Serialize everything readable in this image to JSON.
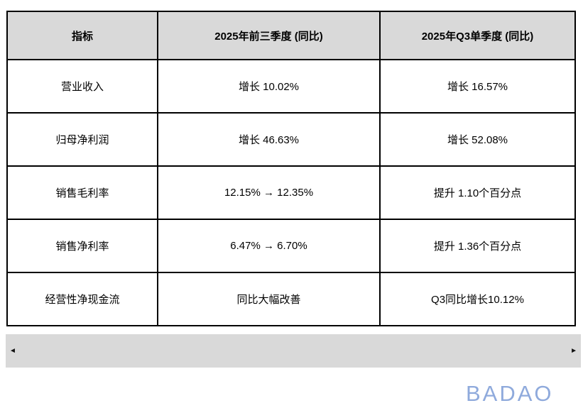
{
  "table": {
    "columns": [
      {
        "label": "指标"
      },
      {
        "label": "2025年前三季度 (同比)"
      },
      {
        "label": "2025年Q3单季度 (同比)"
      }
    ],
    "rows": [
      {
        "metric": "营业收入",
        "ytd": "增长 10.02%",
        "q3": "增长 16.57%"
      },
      {
        "metric": "归母净利润",
        "ytd": "增长 46.63%",
        "q3": "增长 52.08%"
      },
      {
        "metric": "销售毛利率",
        "ytd": "12.15% → 12.35%",
        "q3": "提升 1.10个百分点"
      },
      {
        "metric": "销售净利率",
        "ytd": "6.47% → 6.70%",
        "q3": "提升 1.36个百分点"
      },
      {
        "metric": "经营性净现金流",
        "ytd": "同比大幅改善",
        "q3": "Q3同比增长10.12%"
      }
    ]
  },
  "chart_data": {
    "type": "table",
    "title": "",
    "columns": [
      "指标",
      "2025年前三季度 (同比)",
      "2025年Q3单季度 (同比)"
    ],
    "rows": [
      [
        "营业收入",
        "增长 10.02%",
        "增长 16.57%"
      ],
      [
        "归母净利润",
        "增长 46.63%",
        "增长 52.08%"
      ],
      [
        "销售毛利率",
        "12.15% → 12.35%",
        "提升 1.10个百分点"
      ],
      [
        "销售净利率",
        "6.47% → 6.70%",
        "提升 1.36个百分点"
      ],
      [
        "经营性净现金流",
        "同比大幅改善",
        "Q3同比增长10.12%"
      ]
    ]
  },
  "scrollbar": {
    "left_arrow": "◄",
    "right_arrow": "►"
  },
  "watermark": {
    "text": "BADAO",
    "color": "#8faadc"
  },
  "colors": {
    "header_bg": "#d9d9d9",
    "scrollbar_bg": "#d9d9d9",
    "border": "#000000",
    "text": "#000000"
  }
}
